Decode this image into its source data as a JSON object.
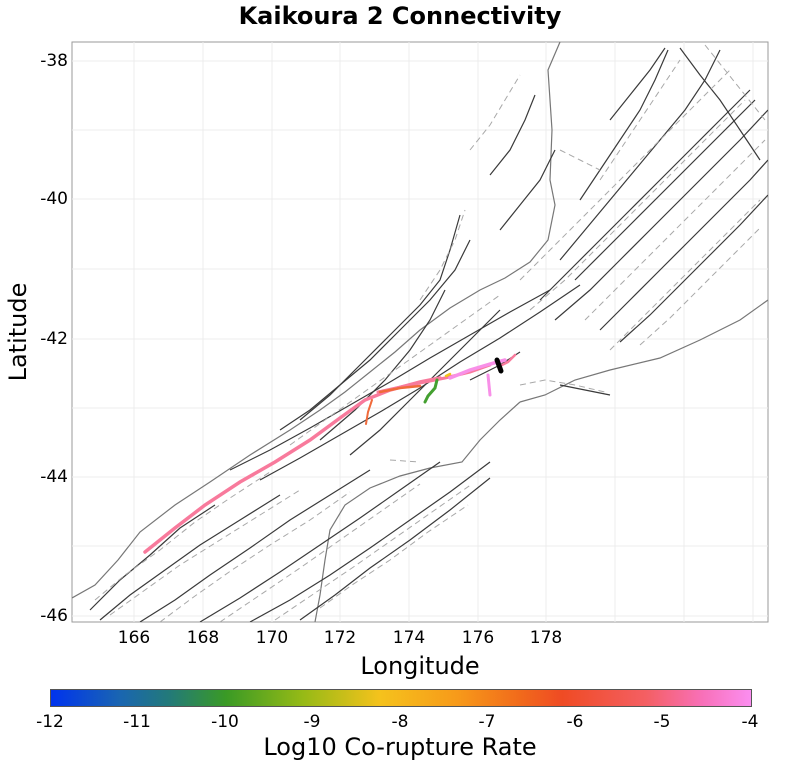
{
  "title": "Kaikoura 2 Connectivity",
  "axes": {
    "xlabel": "Longitude",
    "ylabel": "Latitude",
    "xticks": [
      "166",
      "168",
      "170",
      "172",
      "174",
      "176",
      "178"
    ],
    "yticks": [
      "-38",
      "-40",
      "-42",
      "-44",
      "-46"
    ]
  },
  "colorbar": {
    "label": "Log10 Co-rupture Rate",
    "ticks": [
      "-12",
      "-11",
      "-10",
      "-9",
      "-8",
      "-7",
      "-6",
      "-5",
      "-4"
    ]
  },
  "colors": {
    "high_rate": "#f87a9c",
    "very_high_rate": "#f890e8",
    "mid_rate": "#f06a3a",
    "low_rate": "#44a030",
    "yellow_rate": "#f3c41a",
    "source_fault": "#000000"
  }
}
